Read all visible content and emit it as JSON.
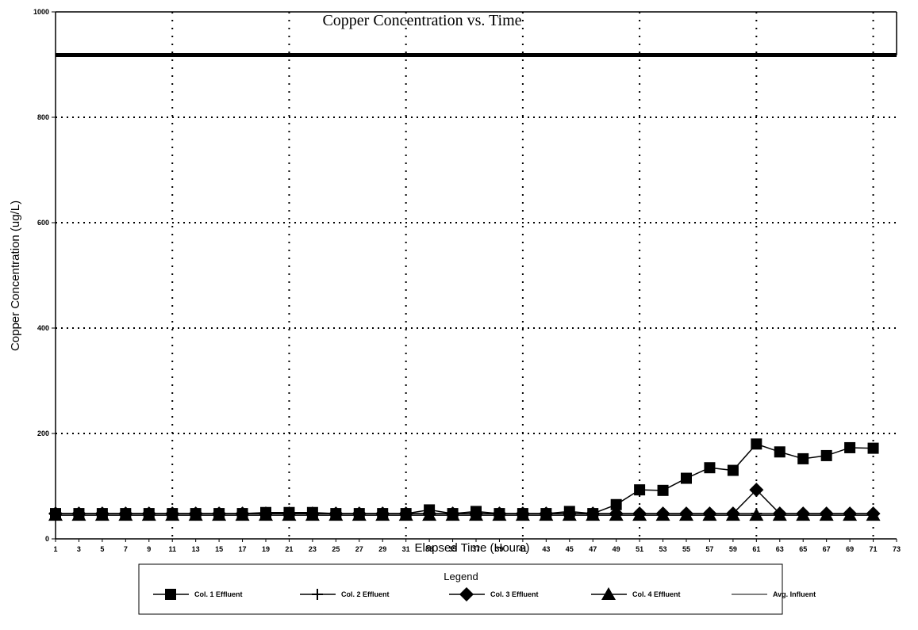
{
  "chart_data": {
    "type": "line",
    "title": "Copper Concentration vs. Time",
    "xlabel": "Elapsed Time (Hours)",
    "ylabel": "Copper Concentration (ug/L)",
    "xlim": [
      1,
      73
    ],
    "ylim": [
      0,
      1000
    ],
    "x_ticks": [
      1,
      3,
      5,
      7,
      9,
      11,
      13,
      15,
      17,
      19,
      21,
      23,
      25,
      27,
      29,
      31,
      33,
      35,
      37,
      39,
      41,
      43,
      45,
      47,
      49,
      51,
      53,
      55,
      57,
      59,
      61,
      63,
      65,
      67,
      69,
      71,
      73
    ],
    "y_ticks": [
      0,
      200,
      400,
      600,
      800,
      1000
    ],
    "grid": true,
    "legend_title": "Legend",
    "legend_position": "bottom",
    "x": [
      1,
      3,
      5,
      7,
      9,
      11,
      13,
      15,
      17,
      19,
      21,
      23,
      25,
      27,
      29,
      31,
      33,
      35,
      37,
      39,
      41,
      43,
      45,
      47,
      49,
      51,
      53,
      55,
      57,
      59,
      61,
      63,
      65,
      67,
      69,
      71
    ],
    "series": [
      {
        "name": "Col. 1 Effluent",
        "marker": "square",
        "values": [
          48,
          48,
          48,
          48,
          48,
          48,
          48,
          48,
          48,
          50,
          50,
          50,
          48,
          48,
          48,
          48,
          55,
          48,
          52,
          48,
          48,
          48,
          52,
          48,
          65,
          93,
          92,
          115,
          135,
          130,
          180,
          165,
          152,
          158,
          173,
          172
        ]
      },
      {
        "name": "Col. 2 Effluent",
        "marker": "plus",
        "values": [
          48,
          48,
          48,
          48,
          48,
          48,
          48,
          48,
          48,
          48,
          48,
          48,
          48,
          48,
          48,
          48,
          48,
          48,
          48,
          48,
          48,
          48,
          48,
          48,
          48,
          48,
          48,
          48,
          48,
          48,
          48,
          48,
          48,
          48,
          48,
          48
        ]
      },
      {
        "name": "Col. 3 Effluent",
        "marker": "diamond",
        "values": [
          48,
          48,
          48,
          48,
          48,
          48,
          48,
          48,
          48,
          48,
          48,
          48,
          48,
          48,
          48,
          48,
          48,
          48,
          48,
          48,
          48,
          48,
          48,
          48,
          48,
          48,
          48,
          48,
          48,
          48,
          93,
          48,
          48,
          48,
          48,
          48
        ]
      },
      {
        "name": "Col. 4 Effluent",
        "marker": "triangle",
        "values": [
          45,
          45,
          45,
          45,
          45,
          45,
          45,
          45,
          45,
          45,
          45,
          45,
          45,
          45,
          45,
          45,
          45,
          45,
          45,
          45,
          45,
          45,
          45,
          45,
          45,
          45,
          45,
          45,
          45,
          45,
          45,
          45,
          45,
          45,
          45,
          45
        ]
      },
      {
        "name": "Avg. Influent",
        "marker": "none",
        "values": [
          918,
          918,
          918,
          918,
          918,
          918,
          918,
          918,
          918,
          918,
          918,
          918,
          918,
          918,
          918,
          918,
          918,
          918,
          918,
          918,
          918,
          918,
          918,
          918,
          918,
          918,
          918,
          918,
          918,
          918,
          918,
          918,
          918,
          918,
          918,
          918
        ]
      }
    ]
  }
}
